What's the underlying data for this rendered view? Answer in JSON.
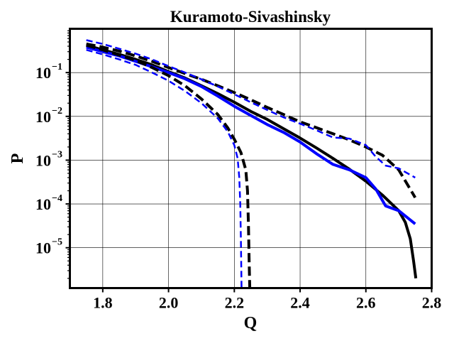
{
  "chart_data": {
    "type": "line",
    "title": "Kuramoto-Sivashinsky",
    "xlabel": "Q",
    "ylabel": "P",
    "xlim": [
      1.7,
      2.8
    ],
    "ylim": [
      1.2e-06,
      1.0
    ],
    "yscale": "log",
    "grid": true,
    "x_ticks": [
      {
        "value": 1.8,
        "label": "1.8"
      },
      {
        "value": 2.0,
        "label": "2.0"
      },
      {
        "value": 2.2,
        "label": "2.2"
      },
      {
        "value": 2.4,
        "label": "2.4"
      },
      {
        "value": 2.6,
        "label": "2.6"
      },
      {
        "value": 2.8,
        "label": "2.8"
      }
    ],
    "y_ticks": [
      {
        "value": 1e-05,
        "base": "10",
        "exp": "−5"
      },
      {
        "value": 0.0001,
        "base": "10",
        "exp": "−4"
      },
      {
        "value": 0.001,
        "base": "10",
        "exp": "−3"
      },
      {
        "value": 0.01,
        "base": "10",
        "exp": "−2"
      },
      {
        "value": 0.1,
        "base": "10",
        "exp": "−1"
      }
    ],
    "series": [
      {
        "color": "#000000",
        "style": "solid",
        "width": 4,
        "points": [
          [
            1.75,
            0.42
          ],
          [
            1.8,
            0.33
          ],
          [
            1.85,
            0.26
          ],
          [
            1.9,
            0.2
          ],
          [
            1.95,
            0.15
          ],
          [
            2.0,
            0.105
          ],
          [
            2.05,
            0.075
          ],
          [
            2.1,
            0.05
          ],
          [
            2.15,
            0.033
          ],
          [
            2.2,
            0.021
          ],
          [
            2.25,
            0.013
          ],
          [
            2.3,
            0.0085
          ],
          [
            2.35,
            0.0052
          ],
          [
            2.4,
            0.0032
          ],
          [
            2.45,
            0.0019
          ],
          [
            2.5,
            0.0011
          ],
          [
            2.55,
            0.00062
          ],
          [
            2.6,
            0.00033
          ],
          [
            2.65,
            0.00016
          ],
          [
            2.7,
            7e-05
          ],
          [
            2.72,
            3.8e-05
          ],
          [
            2.735,
            1.6e-05
          ],
          [
            2.745,
            5e-06
          ],
          [
            2.752,
            2e-06
          ]
        ]
      },
      {
        "color": "#0000ff",
        "style": "solid",
        "width": 4,
        "points": [
          [
            1.75,
            0.38
          ],
          [
            1.8,
            0.3
          ],
          [
            1.85,
            0.24
          ],
          [
            1.9,
            0.18
          ],
          [
            1.95,
            0.135
          ],
          [
            2.0,
            0.1
          ],
          [
            2.05,
            0.072
          ],
          [
            2.1,
            0.048
          ],
          [
            2.15,
            0.029
          ],
          [
            2.2,
            0.017
          ],
          [
            2.25,
            0.0105
          ],
          [
            2.3,
            0.0065
          ],
          [
            2.35,
            0.0043
          ],
          [
            2.4,
            0.0026
          ],
          [
            2.45,
            0.0014
          ],
          [
            2.5,
            0.0008
          ],
          [
            2.55,
            0.0006
          ],
          [
            2.6,
            0.0004
          ],
          [
            2.63,
            0.00022
          ],
          [
            2.66,
            9e-05
          ],
          [
            2.7,
            7e-05
          ],
          [
            2.75,
            3.5e-05
          ]
        ]
      },
      {
        "color": "#000000",
        "style": "dashed",
        "width": 4,
        "points": [
          [
            1.75,
            0.45
          ],
          [
            1.8,
            0.38
          ],
          [
            1.85,
            0.31
          ],
          [
            1.9,
            0.24
          ],
          [
            1.95,
            0.18
          ],
          [
            2.0,
            0.13
          ],
          [
            2.05,
            0.095
          ],
          [
            2.1,
            0.07
          ],
          [
            2.15,
            0.05
          ],
          [
            2.2,
            0.035
          ],
          [
            2.25,
            0.024
          ],
          [
            2.3,
            0.016
          ],
          [
            2.35,
            0.011
          ],
          [
            2.4,
            0.0075
          ],
          [
            2.45,
            0.0055
          ],
          [
            2.5,
            0.004
          ],
          [
            2.55,
            0.0029
          ],
          [
            2.6,
            0.002
          ],
          [
            2.65,
            0.0013
          ],
          [
            2.7,
            0.0006
          ],
          [
            2.75,
            0.00014
          ]
        ]
      },
      {
        "color": "#0000ff",
        "style": "dashed",
        "width": 2.5,
        "points": [
          [
            1.75,
            0.55
          ],
          [
            1.8,
            0.45
          ],
          [
            1.85,
            0.35
          ],
          [
            1.9,
            0.27
          ],
          [
            1.95,
            0.2
          ],
          [
            2.0,
            0.14
          ],
          [
            2.05,
            0.1
          ],
          [
            2.1,
            0.07
          ],
          [
            2.15,
            0.048
          ],
          [
            2.2,
            0.032
          ],
          [
            2.25,
            0.021
          ],
          [
            2.3,
            0.014
          ],
          [
            2.35,
            0.0095
          ],
          [
            2.4,
            0.0068
          ],
          [
            2.45,
            0.0048
          ],
          [
            2.5,
            0.0033
          ],
          [
            2.55,
            0.0031
          ],
          [
            2.6,
            0.0022
          ],
          [
            2.63,
            0.0012
          ],
          [
            2.66,
            0.00075
          ],
          [
            2.7,
            0.00065
          ],
          [
            2.75,
            0.0004
          ]
        ]
      },
      {
        "color": "#000000",
        "style": "dashed",
        "width": 4,
        "points": [
          [
            1.75,
            0.42
          ],
          [
            1.8,
            0.33
          ],
          [
            1.85,
            0.25
          ],
          [
            1.9,
            0.19
          ],
          [
            1.95,
            0.13
          ],
          [
            2.0,
            0.085
          ],
          [
            2.05,
            0.05
          ],
          [
            2.1,
            0.025
          ],
          [
            2.15,
            0.011
          ],
          [
            2.18,
            0.0055
          ],
          [
            2.2,
            0.003
          ],
          [
            2.22,
            0.0015
          ],
          [
            2.235,
            0.0006
          ],
          [
            2.24,
            0.0002
          ],
          [
            2.243,
            3e-05
          ],
          [
            2.245,
            5e-06
          ],
          [
            2.247,
            1.2e-06
          ]
        ]
      },
      {
        "color": "#0000ff",
        "style": "dashed",
        "width": 2.5,
        "points": [
          [
            1.75,
            0.33
          ],
          [
            1.8,
            0.26
          ],
          [
            1.85,
            0.2
          ],
          [
            1.9,
            0.15
          ],
          [
            1.95,
            0.1
          ],
          [
            2.0,
            0.065
          ],
          [
            2.05,
            0.038
          ],
          [
            2.1,
            0.02
          ],
          [
            2.15,
            0.009
          ],
          [
            2.18,
            0.0045
          ],
          [
            2.2,
            0.0022
          ],
          [
            2.21,
            0.0011
          ],
          [
            2.215,
            0.0004
          ],
          [
            2.218,
            0.0001
          ],
          [
            2.22,
            1.5e-05
          ],
          [
            2.222,
            1.2e-06
          ]
        ]
      }
    ]
  }
}
